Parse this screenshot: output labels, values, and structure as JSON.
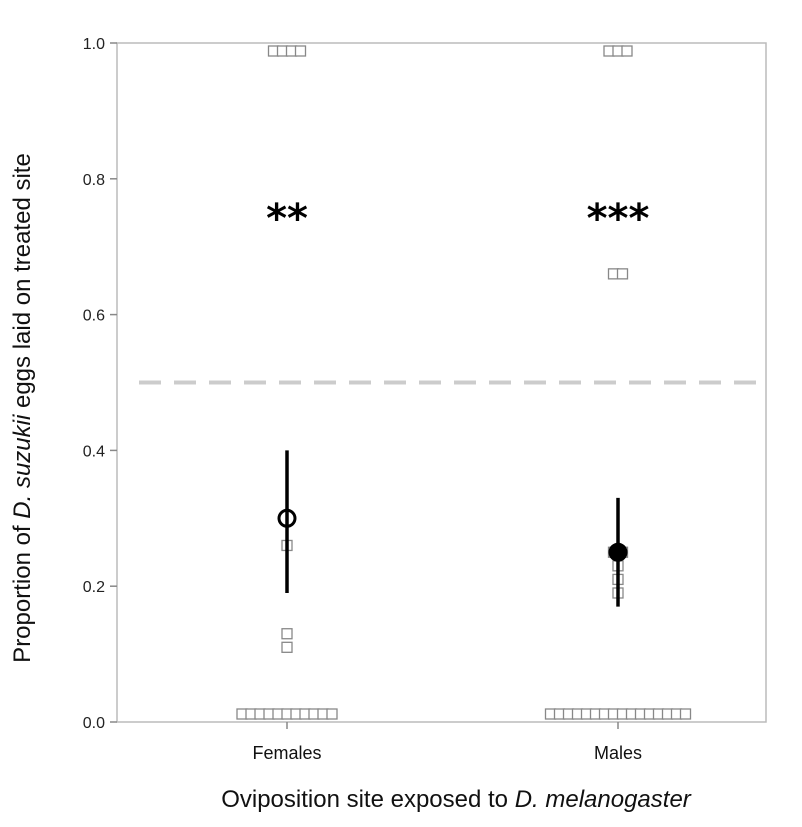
{
  "chart_data": {
    "type": "scatter",
    "xlabel": {
      "before": "Oviposition site exposed to ",
      "italic": "D. melanogaster",
      "after": ""
    },
    "ylabel": {
      "before": "Proportion of ",
      "italic": "D. suzukii",
      "after": " eggs laid on treated site"
    },
    "categories": [
      "Females",
      "Males"
    ],
    "ylim": [
      0,
      1
    ],
    "yticks": [
      "0.0",
      "0.2",
      "0.4",
      "0.6",
      "0.8",
      "1.0"
    ],
    "reference_line": 0.5,
    "grid": false,
    "groups": [
      {
        "category": "Females",
        "significance": "**",
        "mean": 0.3,
        "ci": [
          0.19,
          0.4
        ],
        "points": [
          0.0,
          0.0,
          0.0,
          0.0,
          0.0,
          0.0,
          0.0,
          0.0,
          0.0,
          0.0,
          0.0,
          0.11,
          0.13,
          0.26,
          1.0,
          1.0,
          1.0,
          1.0
        ]
      },
      {
        "category": "Males",
        "significance": "***",
        "mean": 0.25,
        "ci": [
          0.17,
          0.33
        ],
        "points": [
          0.0,
          0.0,
          0.0,
          0.0,
          0.0,
          0.0,
          0.0,
          0.0,
          0.0,
          0.0,
          0.0,
          0.0,
          0.0,
          0.0,
          0.0,
          0.0,
          0.19,
          0.21,
          0.23,
          0.25,
          0.26,
          0.66,
          0.66,
          1.0,
          1.0,
          1.0
        ]
      }
    ],
    "colors": {
      "points": "#888888",
      "mean": "#000000",
      "reference": "#cccccc",
      "frame": "#bbbbbb"
    }
  }
}
